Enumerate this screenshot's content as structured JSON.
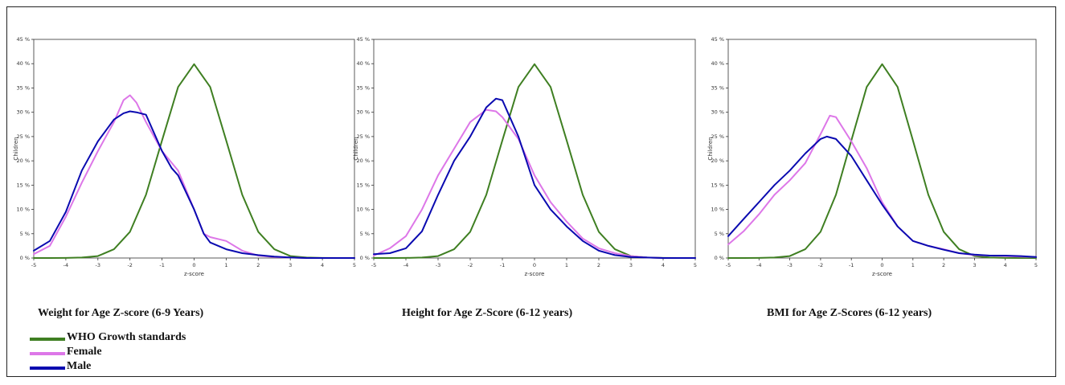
{
  "figure": {
    "colors": {
      "who": "#3f7f22",
      "female": "#dd77e8",
      "male": "#0a0ab0"
    },
    "legend": [
      {
        "name": "WHO Growth standards",
        "color": "#3f7f22"
      },
      {
        "name": "Female",
        "color": "#dd77e8"
      },
      {
        "name": "Male",
        "color": "#0a0ab0"
      }
    ]
  },
  "chart_data": [
    {
      "type": "line",
      "caption": "Weight for Age Z-score (6-9 Years)",
      "xlabel": "z-score",
      "ylabel": "Children",
      "xlim": [
        -5,
        5
      ],
      "ylim": [
        0,
        45
      ],
      "x_ticks": [
        -5,
        -4,
        -3,
        -2,
        -1,
        0,
        1,
        2,
        3,
        4,
        5
      ],
      "y_ticks": [
        "0 %",
        "5 %",
        "10 %",
        "15 %",
        "20 %",
        "25 %",
        "30 %",
        "35 %",
        "40 %",
        "45 %"
      ],
      "grid": false,
      "series": [
        {
          "name": "WHO Growth standards",
          "x": [
            -5,
            -4.5,
            -4,
            -3.5,
            -3,
            -2.5,
            -2,
            -1.5,
            -1,
            -0.5,
            0,
            0.5,
            1,
            1.5,
            2,
            2.5,
            3,
            3.5,
            4,
            4.5,
            5
          ],
          "y": [
            0,
            0,
            0.01,
            0.1,
            0.4,
            1.8,
            5.4,
            13,
            24.2,
            35.2,
            39.9,
            35.2,
            24.2,
            13,
            5.4,
            1.8,
            0.4,
            0.1,
            0.01,
            0,
            0
          ]
        },
        {
          "name": "Female",
          "x": [
            -5,
            -4.5,
            -4,
            -3.5,
            -3,
            -2.5,
            -2.2,
            -2,
            -1.8,
            -1.5,
            -1,
            -0.5,
            0,
            0.3,
            0.5,
            1,
            1.5,
            2,
            2.5,
            3,
            3.5,
            4,
            5
          ],
          "y": [
            0.8,
            2.5,
            8.5,
            15.5,
            22,
            28,
            32.5,
            33.5,
            32,
            28,
            22,
            18,
            10,
            5,
            4.3,
            3.5,
            1.5,
            0.5,
            0.2,
            0.1,
            0,
            0,
            0
          ]
        },
        {
          "name": "Male",
          "x": [
            -5,
            -4.5,
            -4,
            -3.5,
            -3,
            -2.5,
            -2.2,
            -2,
            -1.8,
            -1.5,
            -1,
            -0.7,
            -0.5,
            0,
            0.3,
            0.5,
            1,
            1.5,
            2,
            2.5,
            3,
            3.5,
            4,
            5
          ],
          "y": [
            1.5,
            3.5,
            9.5,
            18,
            24,
            28.5,
            29.8,
            30.2,
            30,
            29.5,
            22,
            18.5,
            17,
            10,
            5,
            3.2,
            1.8,
            1,
            0.6,
            0.3,
            0.1,
            0,
            0,
            0
          ]
        }
      ]
    },
    {
      "type": "line",
      "caption": "Height for Age Z-Score (6-12 years)",
      "xlabel": "z-score",
      "ylabel": "Children",
      "xlim": [
        -5,
        5
      ],
      "ylim": [
        0,
        45
      ],
      "x_ticks": [
        -5,
        -4,
        -3,
        -2,
        -1,
        0,
        1,
        2,
        3,
        4,
        5
      ],
      "y_ticks": [
        "0 %",
        "5 %",
        "10 %",
        "15 %",
        "20 %",
        "25 %",
        "30 %",
        "35 %",
        "40 %",
        "45 %"
      ],
      "grid": false,
      "series": [
        {
          "name": "WHO Growth standards",
          "x": [
            -5,
            -4.5,
            -4,
            -3.5,
            -3,
            -2.5,
            -2,
            -1.5,
            -1,
            -0.5,
            0,
            0.5,
            1,
            1.5,
            2,
            2.5,
            3,
            3.5,
            4,
            4.5,
            5
          ],
          "y": [
            0,
            0,
            0.01,
            0.1,
            0.4,
            1.8,
            5.4,
            13,
            24.2,
            35.2,
            39.9,
            35.2,
            24.2,
            13,
            5.4,
            1.8,
            0.4,
            0.1,
            0.01,
            0,
            0
          ]
        },
        {
          "name": "Female",
          "x": [
            -5,
            -4.5,
            -4,
            -3.5,
            -3,
            -2.5,
            -2,
            -1.5,
            -1.2,
            -1,
            -0.5,
            0,
            0.5,
            1,
            1.5,
            2,
            2.5,
            3,
            3.5,
            4,
            5
          ],
          "y": [
            0.5,
            2,
            4.5,
            10,
            17,
            22.5,
            28,
            30.5,
            30.2,
            29,
            24.5,
            17,
            11.5,
            7.5,
            4,
            2,
            1,
            0.4,
            0.1,
            0,
            0
          ]
        },
        {
          "name": "Male",
          "x": [
            -5,
            -4.5,
            -4,
            -3.5,
            -3,
            -2.5,
            -2,
            -1.5,
            -1.2,
            -1,
            -0.5,
            0,
            0.5,
            1,
            1.5,
            2,
            2.5,
            3,
            3.5,
            4,
            5
          ],
          "y": [
            0.8,
            1,
            2,
            5.5,
            13,
            20,
            25,
            31,
            32.8,
            32.5,
            25,
            15,
            10,
            6.5,
            3.5,
            1.5,
            0.6,
            0.2,
            0.1,
            0,
            0
          ]
        }
      ]
    },
    {
      "type": "line",
      "caption": "BMI for Age Z-Scores (6-12 years)",
      "xlabel": "z-score",
      "ylabel": "Children",
      "xlim": [
        -5,
        5
      ],
      "ylim": [
        0,
        45
      ],
      "x_ticks": [
        -5,
        -4,
        -3,
        -2,
        -1,
        0,
        1,
        2,
        3,
        4,
        5
      ],
      "y_ticks": [
        "0 %",
        "5 %",
        "10 %",
        "15 %",
        "20 %",
        "25 %",
        "30 %",
        "35 %",
        "40 %",
        "45 %"
      ],
      "grid": false,
      "series": [
        {
          "name": "WHO Growth standards",
          "x": [
            -5,
            -4.5,
            -4,
            -3.5,
            -3,
            -2.5,
            -2,
            -1.5,
            -1,
            -0.5,
            0,
            0.5,
            1,
            1.5,
            2,
            2.5,
            3,
            3.5,
            4,
            4.5,
            5
          ],
          "y": [
            0,
            0,
            0.01,
            0.1,
            0.4,
            1.8,
            5.4,
            13,
            24.2,
            35.2,
            39.9,
            35.2,
            24.2,
            13,
            5.4,
            1.8,
            0.4,
            0.1,
            0.01,
            0,
            0
          ]
        },
        {
          "name": "Female",
          "x": [
            -5,
            -4.5,
            -4,
            -3.5,
            -3,
            -2.5,
            -2,
            -1.7,
            -1.5,
            -1,
            -0.5,
            0,
            0.5,
            1,
            1.5,
            2,
            2.5,
            3,
            3.5,
            4,
            4.5,
            5
          ],
          "y": [
            2.8,
            5.5,
            9,
            13,
            16,
            19.5,
            25.5,
            29.3,
            29,
            24,
            18.5,
            11.5,
            6.5,
            3.5,
            2.5,
            1.8,
            1,
            0.6,
            0.5,
            0.4,
            0.3,
            0.2
          ]
        },
        {
          "name": "Male",
          "x": [
            -5,
            -4.5,
            -4,
            -3.5,
            -3,
            -2.5,
            -2,
            -1.8,
            -1.5,
            -1,
            -0.5,
            0,
            0.5,
            1,
            1.5,
            2,
            2.5,
            3,
            3.5,
            4,
            4.5,
            5
          ],
          "y": [
            4.5,
            8,
            11.5,
            15,
            18,
            21.5,
            24.5,
            25,
            24.5,
            21,
            16,
            11,
            6.5,
            3.5,
            2.5,
            1.7,
            1,
            0.7,
            0.5,
            0.5,
            0.4,
            0.2
          ]
        }
      ]
    }
  ]
}
